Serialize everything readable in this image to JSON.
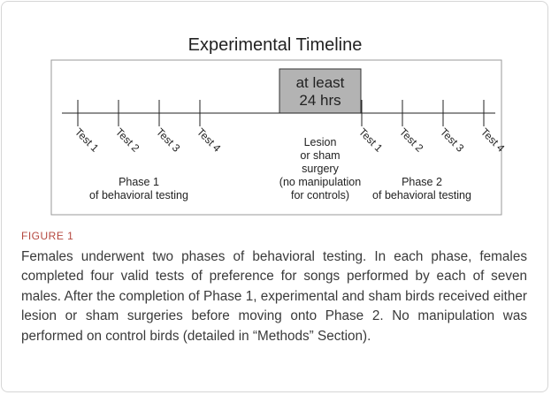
{
  "figure": {
    "title": "Experimental Timeline",
    "gap_label": [
      "at least",
      "24 hrs"
    ],
    "phase1": {
      "tests": [
        "Test 1",
        "Test 2",
        "Test 3",
        "Test 4"
      ],
      "label": [
        "Phase 1",
        "of behavioral testing"
      ]
    },
    "middle_label": [
      "Lesion",
      "or sham",
      "surgery",
      "(no manipulation",
      "for controls)"
    ],
    "phase2": {
      "tests": [
        "Test 1",
        "Test 2",
        "Test 3",
        "Test 4"
      ],
      "label": [
        "Phase 2",
        "of behavioral testing"
      ]
    },
    "caption_label": "FIGURE 1",
    "caption": "Females underwent two phases of behavioral testing. In each phase, females completed four valid tests of preference for songs performed by each of seven males. After the completion of Phase 1, experimental and sham birds received either lesion or sham surgeries before moving onto Phase 2. No manipulation was performed on control birds (detailed in “Methods” Section)."
  }
}
